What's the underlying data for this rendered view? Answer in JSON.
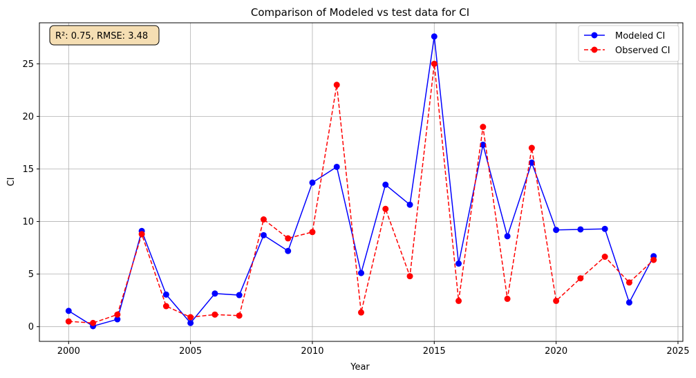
{
  "chart_data": {
    "type": "line",
    "title": "Comparison of Modeled vs test data for CI",
    "xlabel": "Year",
    "ylabel": "CI",
    "xlim": [
      1998.8,
      2025.2
    ],
    "ylim": [
      -1.4,
      28.9
    ],
    "x_ticks": [
      2000,
      2005,
      2010,
      2015,
      2020,
      2025
    ],
    "y_ticks": [
      0,
      5,
      10,
      15,
      20,
      25
    ],
    "grid": true,
    "legend_position": "top-right",
    "annotation": "R²: 0.75, RMSE: 3.48",
    "x": [
      2000,
      2001,
      2002,
      2003,
      2004,
      2005,
      2006,
      2007,
      2008,
      2009,
      2010,
      2011,
      2012,
      2013,
      2014,
      2015,
      2016,
      2017,
      2018,
      2019,
      2020,
      2021,
      2022,
      2023,
      2024
    ],
    "series": [
      {
        "name": "Modeled CI",
        "color": "#0000ff",
        "style": "solid",
        "values": [
          1.5,
          0.05,
          0.7,
          9.1,
          3.05,
          0.35,
          3.15,
          3.0,
          8.7,
          7.2,
          13.7,
          15.2,
          5.1,
          13.5,
          11.6,
          27.6,
          6.0,
          17.3,
          8.6,
          15.6,
          9.2,
          9.25,
          9.3,
          2.3,
          6.7
        ]
      },
      {
        "name": "Observed CI",
        "color": "#ff0000",
        "style": "dashed",
        "values": [
          0.5,
          0.35,
          1.15,
          8.8,
          1.95,
          0.9,
          1.15,
          1.05,
          10.2,
          8.4,
          9.0,
          23.0,
          1.35,
          11.2,
          4.8,
          25.0,
          2.45,
          19.0,
          2.65,
          17.0,
          2.45,
          4.6,
          6.65,
          4.2,
          6.35
        ]
      }
    ]
  }
}
